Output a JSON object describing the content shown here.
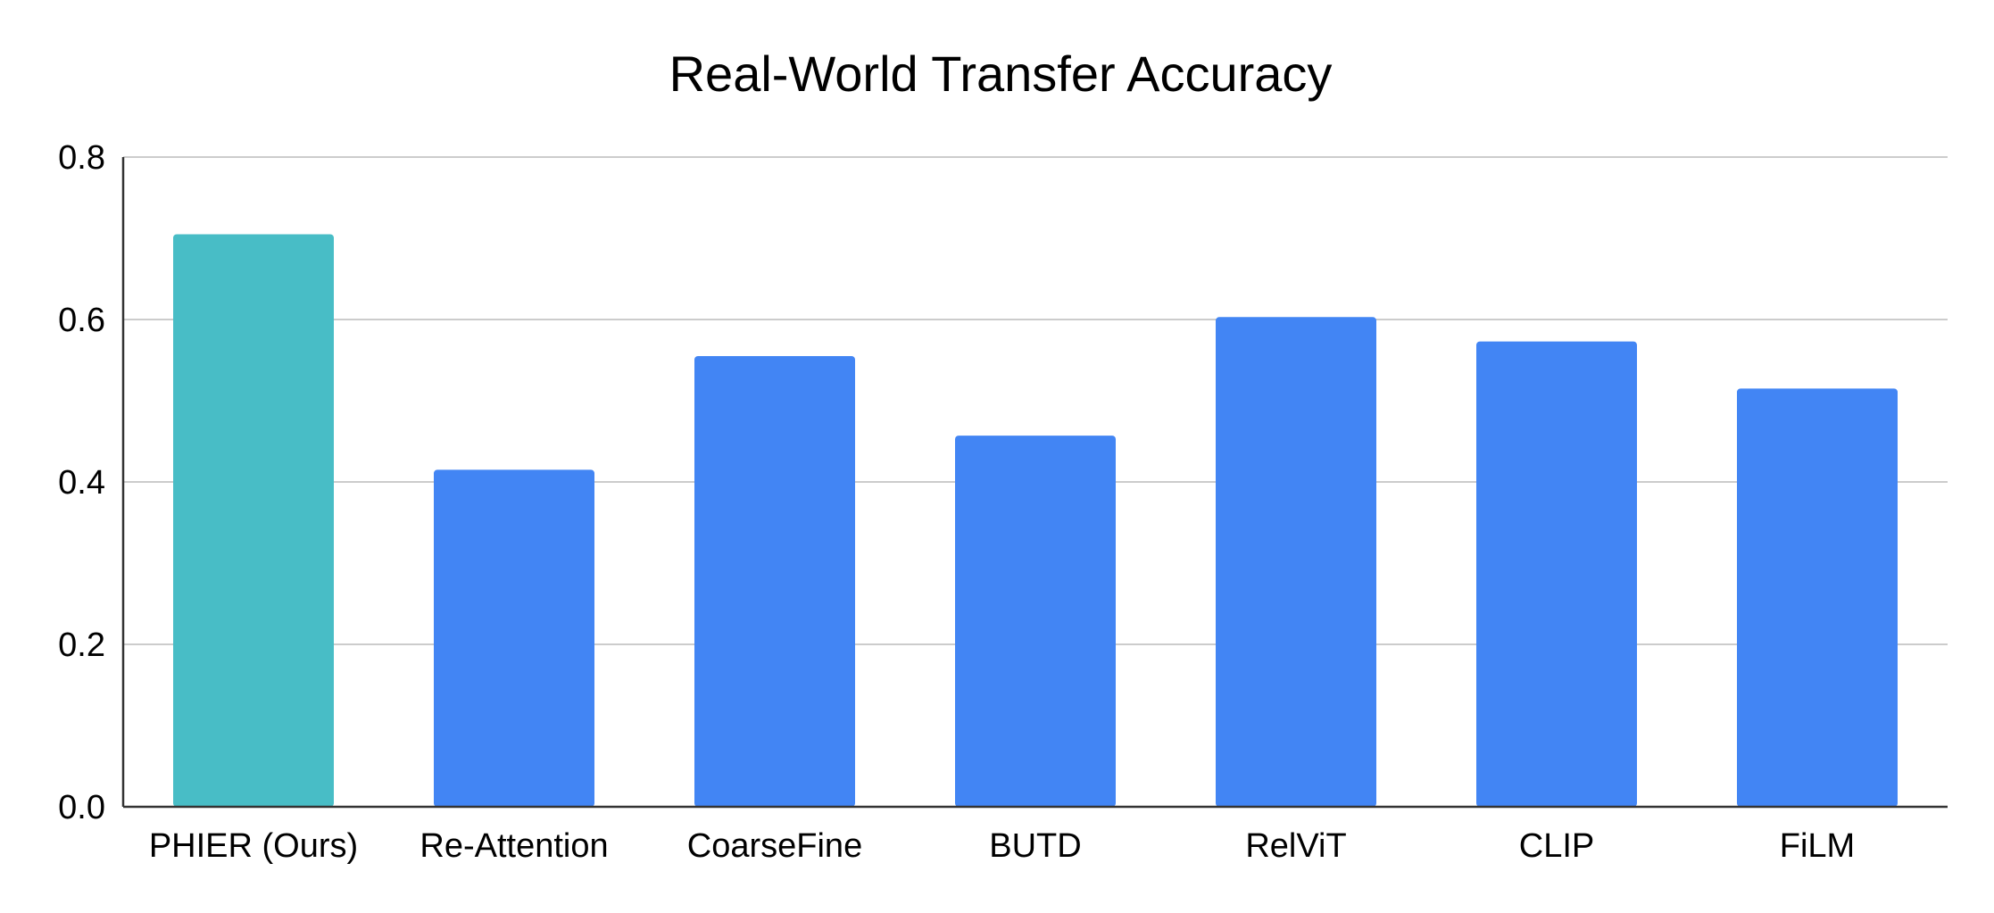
{
  "chart_data": {
    "type": "bar",
    "title": "Real-World Transfer Accuracy",
    "xlabel": "",
    "ylabel": "",
    "categories": [
      "PHIER (Ours)",
      "Re-Attention",
      "CoarseFine",
      "BUTD",
      "RelViT",
      "CLIP",
      "FiLM"
    ],
    "values": [
      0.705,
      0.415,
      0.555,
      0.457,
      0.603,
      0.573,
      0.515
    ],
    "bar_colors": [
      "#48bdc6",
      "#4285f4",
      "#4285f4",
      "#4285f4",
      "#4285f4",
      "#4285f4",
      "#4285f4"
    ],
    "ylim": [
      0,
      0.8
    ],
    "yticks": [
      "0.0",
      "0.2",
      "0.4",
      "0.6",
      "0.8"
    ],
    "grid": true,
    "legend": "none"
  }
}
